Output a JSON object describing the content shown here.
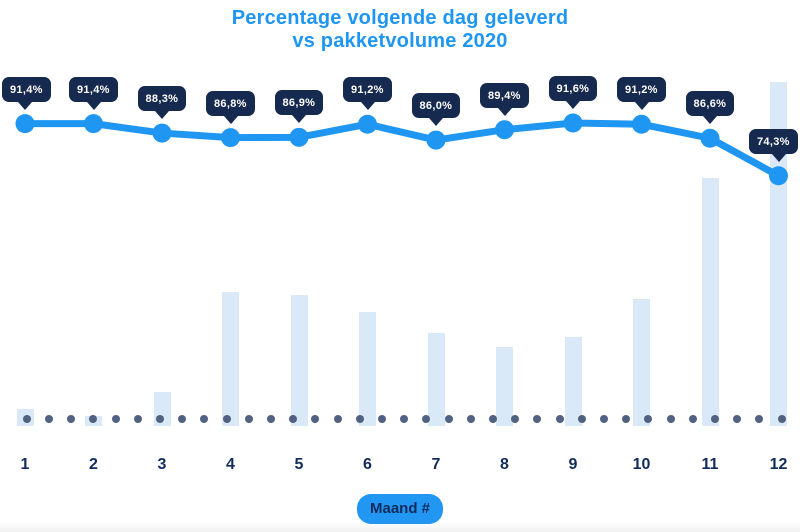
{
  "title": {
    "line1": "Percentage volgende dag geleverd",
    "line2": "vs pakketvolume 2020"
  },
  "xaxis_badge": "Maand #",
  "colors": {
    "title_blue": "#1e96f2",
    "line_blue": "#1e96f2",
    "bar_light_blue": "#d9e9f8",
    "tooltip_navy": "#16294f",
    "tooltip_text": "#ffffff",
    "axis_label_navy": "#112b5c",
    "badge_blue": "#2196f3",
    "baseline_dot": "#516182"
  },
  "chart_data": {
    "type": "line+bar combo",
    "title": "Percentage volgende dag geleverd vs pakketvolume 2020",
    "xlabel": "Maand #",
    "ylabel": "",
    "categories": [
      "1",
      "2",
      "3",
      "4",
      "5",
      "6",
      "7",
      "8",
      "9",
      "10",
      "11",
      "12"
    ],
    "grid": false,
    "legend": "none",
    "series": [
      {
        "name": "Percentage volgende dag geleverd",
        "type": "line",
        "unit": "%",
        "values": [
          91.4,
          91.4,
          88.3,
          86.8,
          86.9,
          91.2,
          86.0,
          89.4,
          91.6,
          91.2,
          86.6,
          74.3
        ],
        "labels": [
          "91,4%",
          "91,4%",
          "88,3%",
          "86,8%",
          "86,9%",
          "91,2%",
          "86,0%",
          "89,4%",
          "91,6%",
          "91,2%",
          "86,6%",
          "74,3%"
        ]
      },
      {
        "name": "Pakketvolume 2020",
        "type": "bar",
        "unit": "relative (max month = 100, no axis shown)",
        "values": [
          5,
          3,
          10,
          39,
          38,
          33,
          27,
          23,
          26,
          37,
          72,
          100
        ]
      }
    ]
  }
}
